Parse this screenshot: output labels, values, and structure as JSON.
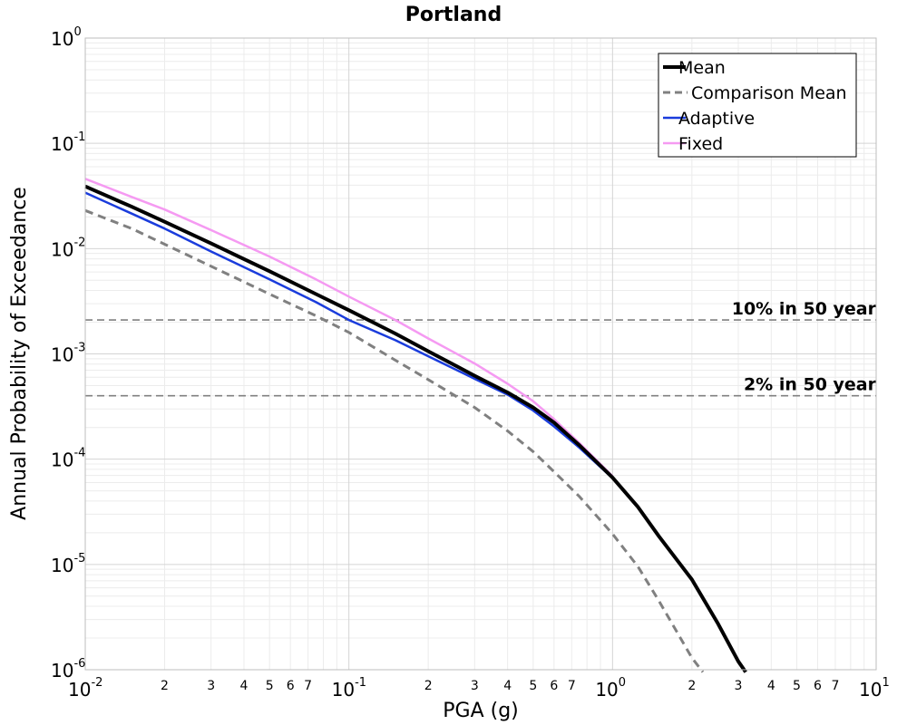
{
  "chart_data": {
    "type": "line",
    "title": "Portland",
    "xlabel": "PGA (g)",
    "ylabel": "Annual Probability of Exceedance",
    "xscale": "log",
    "yscale": "log",
    "xlim": [
      0.01,
      10
    ],
    "ylim": [
      1e-06,
      1
    ],
    "x_major_ticks": [
      {
        "base": "10",
        "exp": "-2",
        "value": 0.01
      },
      {
        "base": "10",
        "exp": "-1",
        "value": 0.1
      },
      {
        "base": "10",
        "exp": "0",
        "value": 1
      },
      {
        "base": "10",
        "exp": "1",
        "value": 10
      }
    ],
    "y_major_ticks": [
      {
        "base": "10",
        "exp": "0",
        "value": 1
      },
      {
        "base": "10",
        "exp": "-1",
        "value": 0.1
      },
      {
        "base": "10",
        "exp": "-2",
        "value": 0.01
      },
      {
        "base": "10",
        "exp": "-3",
        "value": 0.001
      },
      {
        "base": "10",
        "exp": "-4",
        "value": 0.0001
      },
      {
        "base": "10",
        "exp": "-5",
        "value": 1e-05
      },
      {
        "base": "10",
        "exp": "-6",
        "value": 1e-06
      }
    ],
    "x_minor_labels": [
      "2",
      "3",
      "4",
      "5",
      "6",
      "7"
    ],
    "grid": true,
    "legend_position": "top-right",
    "reference_lines": [
      {
        "label": "10% in 50 year",
        "y": 0.0021,
        "color": "#808080"
      },
      {
        "label": "2% in 50 year",
        "y": 0.0004,
        "color": "#808080"
      }
    ],
    "series": [
      {
        "name": "Mean",
        "color": "#000000",
        "style": "solid",
        "x": [
          0.01,
          0.015,
          0.02,
          0.03,
          0.05,
          0.075,
          0.1,
          0.15,
          0.2,
          0.3,
          0.4,
          0.5,
          0.6,
          0.75,
          1.0,
          1.25,
          1.5,
          2.0,
          2.5,
          3.0,
          3.2
        ],
        "y": [
          0.039,
          0.025,
          0.018,
          0.0112,
          0.0061,
          0.0037,
          0.0026,
          0.00156,
          0.00106,
          0.00062,
          0.00043,
          0.00031,
          0.000223,
          0.000135,
          6.7e-05,
          3.5e-05,
          1.85e-05,
          7.2e-06,
          2.8e-06,
          1.2e-06,
          9.5e-07
        ]
      },
      {
        "name": "Comparison Mean",
        "color": "#808080",
        "style": "dashed",
        "x": [
          0.01,
          0.015,
          0.02,
          0.03,
          0.05,
          0.075,
          0.1,
          0.15,
          0.2,
          0.3,
          0.4,
          0.5,
          0.6,
          0.75,
          1.0,
          1.25,
          1.5,
          2.0,
          2.2
        ],
        "y": [
          0.023,
          0.0155,
          0.011,
          0.0068,
          0.0037,
          0.0023,
          0.0016,
          0.00087,
          0.00057,
          0.00031,
          0.000185,
          0.000118,
          7.6e-05,
          4.4e-05,
          1.95e-05,
          9.5e-06,
          4.5e-06,
          1.3e-06,
          9.5e-07
        ]
      },
      {
        "name": "Adaptive",
        "color": "#1a3cdc",
        "style": "solid",
        "x": [
          0.01,
          0.015,
          0.02,
          0.03,
          0.05,
          0.075,
          0.1,
          0.15,
          0.2,
          0.3,
          0.4,
          0.5,
          0.6,
          0.75,
          1.0
        ],
        "y": [
          0.034,
          0.0215,
          0.0155,
          0.0094,
          0.0051,
          0.0031,
          0.0021,
          0.00135,
          0.00095,
          0.00058,
          0.00041,
          0.00029,
          0.000205,
          0.000128,
          6.6e-05
        ]
      },
      {
        "name": "Fixed",
        "color": "#f59af2",
        "style": "solid",
        "x": [
          0.01,
          0.015,
          0.02,
          0.03,
          0.05,
          0.075,
          0.1,
          0.15,
          0.2,
          0.3,
          0.4,
          0.5,
          0.6,
          0.75,
          1.0
        ],
        "y": [
          0.046,
          0.031,
          0.0235,
          0.015,
          0.0084,
          0.0051,
          0.0035,
          0.0021,
          0.0014,
          0.00081,
          0.00052,
          0.000355,
          0.00024,
          0.000142,
          6.9e-05
        ]
      }
    ]
  }
}
